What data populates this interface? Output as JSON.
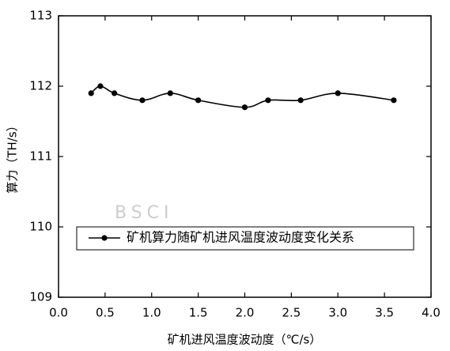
{
  "chart_data": {
    "type": "line",
    "x_label": "矿机进风温度波动度（℃/s）",
    "y_label": "算力（TH/s）",
    "watermark": "BSCI",
    "x": [
      0.35,
      0.45,
      0.6,
      0.9,
      1.2,
      1.5,
      2.0,
      2.25,
      2.6,
      3.0,
      3.6
    ],
    "series": [
      {
        "name": "矿机算力随矿机进风温度波动度变化关系",
        "color": "#000000",
        "values": [
          111.9,
          112.0,
          111.9,
          111.8,
          111.9,
          111.8,
          111.7,
          111.8,
          111.8,
          111.9,
          111.8
        ]
      }
    ],
    "xlim": [
      0,
      4
    ],
    "xticks": [
      {
        "value": 0,
        "label": "0.0"
      },
      {
        "value": 0.5,
        "label": "0.5"
      },
      {
        "value": 1,
        "label": "1.0"
      },
      {
        "value": 1.5,
        "label": "1.5"
      },
      {
        "value": 2,
        "label": "2.0"
      },
      {
        "value": 2.5,
        "label": "2.5"
      },
      {
        "value": 3,
        "label": "3.0"
      },
      {
        "value": 3.5,
        "label": "3.5"
      },
      {
        "value": 4,
        "label": "4.0"
      }
    ],
    "ylim": [
      109,
      113
    ],
    "yticks": [
      109,
      110,
      111,
      112,
      113
    ],
    "legend": "lower-left"
  }
}
